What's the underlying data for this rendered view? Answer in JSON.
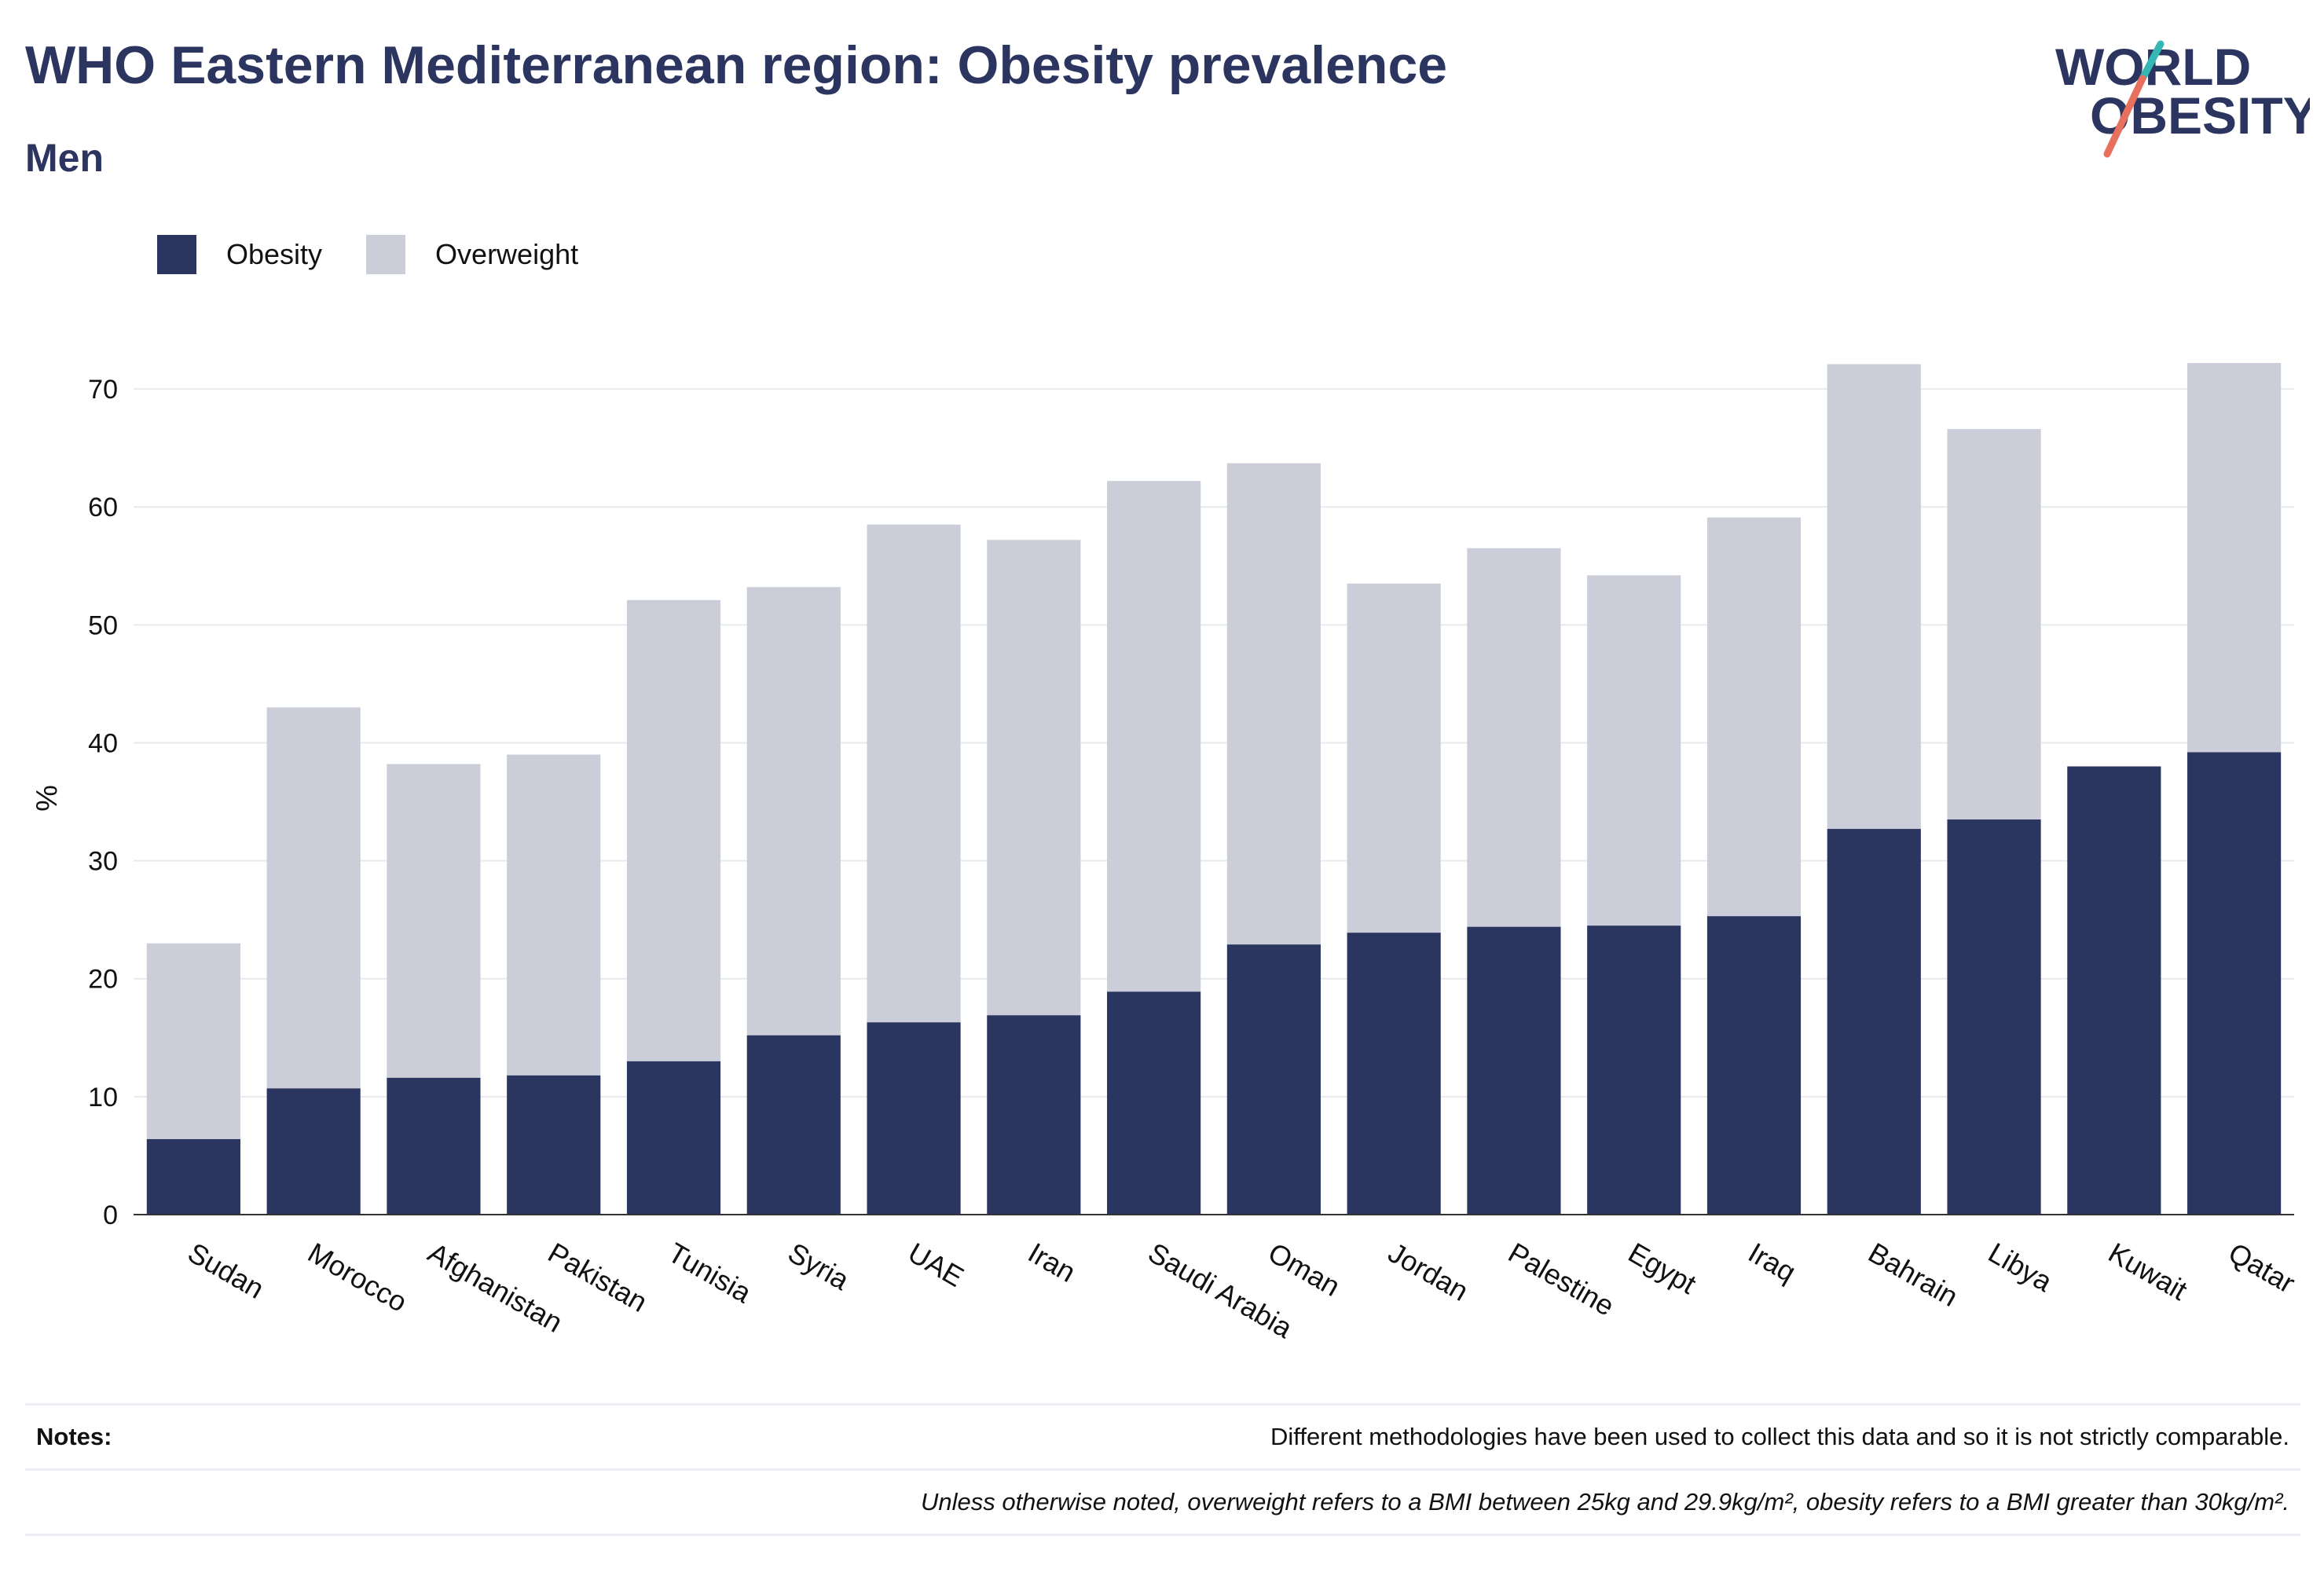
{
  "title": "WHO Eastern Mediterranean region: Obesity prevalence",
  "subtitle": "Men",
  "logo": {
    "line1": "WORLD",
    "line2": "OBESITY"
  },
  "colors": {
    "obesity": "#2b3660",
    "overweight": "#cbcdd8",
    "title": "#2b3560",
    "logo_teal": "#35b7b3",
    "logo_coral": "#e8705e"
  },
  "notes": {
    "label": "Notes:",
    "line1": "Different methodologies have been used to collect this data and so it is not strictly comparable.",
    "line2": "Unless otherwise noted, overweight refers to a BMI between 25kg and 29.9kg/m², obesity refers to a BMI greater than 30kg/m²."
  },
  "chart_data": {
    "type": "bar",
    "stacked": true,
    "categories": [
      "Sudan",
      "Morocco",
      "Afghanistan",
      "Pakistan",
      "Tunisia",
      "Syria",
      "UAE",
      "Iran",
      "Saudi Arabia",
      "Oman",
      "Jordan",
      "Palestine",
      "Egypt",
      "Iraq",
      "Bahrain",
      "Libya",
      "Kuwait",
      "Qatar"
    ],
    "series": [
      {
        "name": "Obesity",
        "color": "#2b3660",
        "values": [
          6.4,
          10.7,
          11.6,
          11.8,
          13.0,
          15.2,
          16.3,
          16.9,
          18.9,
          22.9,
          23.9,
          24.4,
          24.5,
          25.3,
          32.7,
          33.5,
          38.0,
          39.2
        ]
      },
      {
        "name": "Overweight",
        "color": "#cbcdd8",
        "values": [
          16.6,
          32.3,
          26.6,
          27.2,
          39.1,
          38.0,
          42.2,
          40.3,
          43.3,
          40.8,
          29.6,
          32.1,
          29.7,
          33.8,
          39.4,
          33.1,
          0,
          33.0
        ]
      }
    ],
    "totals": [
      23.0,
      43.0,
      38.2,
      39.0,
      52.1,
      53.2,
      58.5,
      57.2,
      62.2,
      63.7,
      53.5,
      56.5,
      54.2,
      59.1,
      72.1,
      66.6,
      38.0,
      72.2
    ],
    "ylabel": "%",
    "ylim": [
      0,
      75
    ],
    "yticks": [
      0,
      10,
      20,
      30,
      40,
      50,
      60,
      70
    ],
    "grid": true,
    "legend_position": "top-left"
  }
}
